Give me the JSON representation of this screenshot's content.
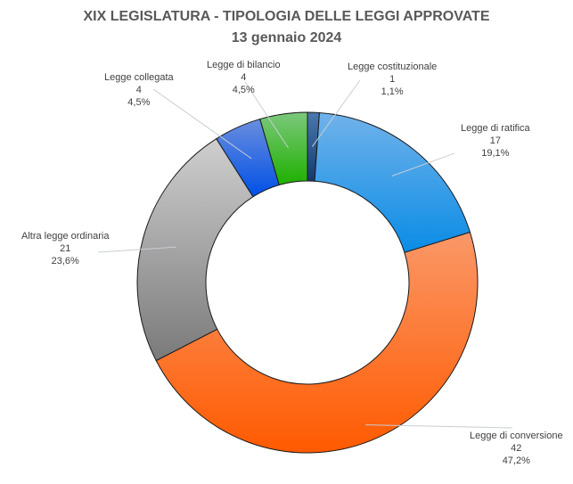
{
  "chart_data": {
    "type": "pie",
    "variant": "donut",
    "title": "XIX LEGISLATURA - TIPOLOGIA DELLE LEGGI APPROVATE",
    "subtitle": "13 gennaio 2024",
    "slices": [
      {
        "label": "Legge costituzionale",
        "value": 1,
        "percent": "1,1%",
        "color_top": "#4a78ad",
        "color_bottom": "#163a6c"
      },
      {
        "label": "Legge di ratifica",
        "value": 17,
        "percent": "19,1%",
        "color_top": "#70b2ea",
        "color_bottom": "#0a8ce6"
      },
      {
        "label": "Legge di conversione",
        "value": 42,
        "percent": "47,2%",
        "color_top": "#fa9868",
        "color_bottom": "#ff5a00"
      },
      {
        "label": "Altra legge ordinaria",
        "value": 21,
        "percent": "23,6%",
        "color_top": "#cfcfcf",
        "color_bottom": "#7a7a7a"
      },
      {
        "label": "Legge collegata",
        "value": 4,
        "percent": "4,5%",
        "color_top": "#6a8ede",
        "color_bottom": "#0050e6"
      },
      {
        "label": "Legge di bilancio",
        "value": 4,
        "percent": "4,5%",
        "color_top": "#7cc87c",
        "color_bottom": "#1fb000"
      }
    ]
  }
}
